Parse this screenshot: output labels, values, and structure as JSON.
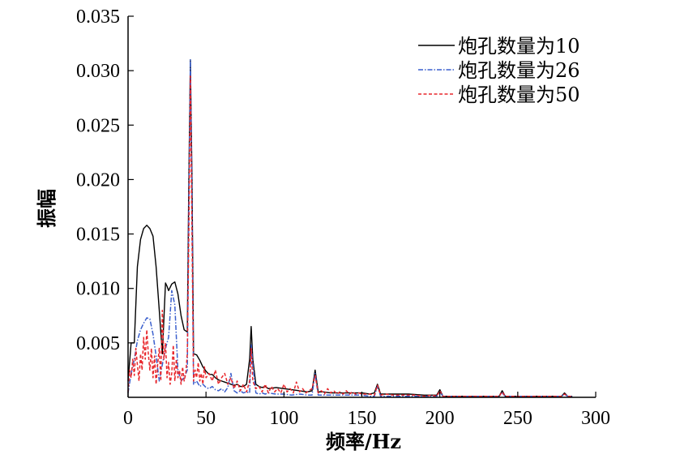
{
  "chart_data": {
    "type": "line",
    "title": "",
    "xlabel": "频率/Hz",
    "ylabel": "振幅",
    "xlim": [
      0,
      300
    ],
    "ylim": [
      0,
      0.035
    ],
    "xticks": [
      0,
      50,
      100,
      150,
      200,
      250,
      300
    ],
    "yticks": [
      0.005,
      0.01,
      0.015,
      0.02,
      0.025,
      0.03,
      0.035
    ],
    "xtick_labels": [
      "0",
      "50",
      "100",
      "150",
      "200",
      "250",
      "300"
    ],
    "ytick_labels": [
      "0.005",
      "0.010",
      "0.015",
      "0.020",
      "0.025",
      "0.030",
      "0.035"
    ],
    "grid": false,
    "legend_position": "top-right",
    "series": [
      {
        "name": "炮孔数量为10",
        "color": "#000000",
        "dash": "solid",
        "x": [
          0,
          2,
          4,
          6,
          8,
          10,
          12,
          14,
          16,
          18,
          20,
          22,
          24,
          25,
          26,
          28,
          30,
          32,
          34,
          36,
          38,
          39,
          40,
          41,
          42,
          44,
          46,
          48,
          50,
          52,
          54,
          56,
          58,
          60,
          62,
          64,
          66,
          68,
          70,
          72,
          74,
          76,
          78,
          79,
          80,
          82,
          84,
          86,
          88,
          90,
          95,
          100,
          105,
          110,
          115,
          118,
          120,
          122,
          125,
          130,
          135,
          140,
          145,
          150,
          155,
          158,
          160,
          162,
          165,
          170,
          180,
          190,
          195,
          198,
          200,
          202,
          205,
          210,
          220,
          230,
          235,
          238,
          240,
          242,
          245,
          250,
          260,
          270,
          275,
          278,
          280,
          282,
          285
        ],
        "values": [
          0.0015,
          0.005,
          0.005,
          0.012,
          0.0145,
          0.0155,
          0.0158,
          0.0155,
          0.0148,
          0.012,
          0.008,
          0.004,
          0.0105,
          0.0102,
          0.0098,
          0.0104,
          0.0106,
          0.0095,
          0.0075,
          0.0062,
          0.006,
          0.02,
          0.031,
          0.02,
          0.004,
          0.0039,
          0.0034,
          0.0028,
          0.0024,
          0.0021,
          0.0021,
          0.0018,
          0.0016,
          0.0015,
          0.0014,
          0.0013,
          0.0012,
          0.0011,
          0.0012,
          0.001,
          0.001,
          0.0012,
          0.0035,
          0.0065,
          0.0035,
          0.0012,
          0.001,
          0.0009,
          0.001,
          0.0008,
          0.0009,
          0.0008,
          0.0007,
          0.0006,
          0.0005,
          0.0006,
          0.0025,
          0.0005,
          0.0005,
          0.0004,
          0.0004,
          0.0004,
          0.0004,
          0.0004,
          0.0003,
          0.0004,
          0.0012,
          0.0003,
          0.0003,
          0.0003,
          0.0003,
          0.0002,
          0.0002,
          0.0002,
          0.0007,
          0.0001,
          0.0001,
          0.0001,
          0.0001,
          0.0001,
          0.0001,
          0.0001,
          0.0006,
          0.0001,
          0.0001,
          0.0001,
          0.0001,
          0.0001,
          0.0001,
          0.0001,
          0.0004,
          0.0001,
          0.0001
        ]
      },
      {
        "name": "炮孔数量为26",
        "color": "#3a5fcd",
        "dash": "dashdot",
        "x": [
          0,
          2,
          4,
          6,
          8,
          10,
          12,
          14,
          16,
          18,
          20,
          22,
          24,
          26,
          28,
          30,
          32,
          34,
          36,
          38,
          39,
          40,
          41,
          42,
          44,
          46,
          48,
          50,
          52,
          54,
          56,
          58,
          60,
          62,
          64,
          66,
          68,
          70,
          72,
          74,
          76,
          78,
          79,
          80,
          82,
          84,
          86,
          88,
          90,
          95,
          100,
          105,
          110,
          115,
          118,
          120,
          122,
          125,
          130,
          135,
          140,
          145,
          150,
          155,
          158,
          160,
          162,
          165,
          170,
          180,
          190,
          198,
          200,
          202,
          210,
          220,
          238,
          240,
          242,
          250,
          260,
          278,
          280,
          282,
          285
        ],
        "values": [
          0.0004,
          0.0022,
          0.0035,
          0.0052,
          0.0062,
          0.0068,
          0.0073,
          0.0072,
          0.0058,
          0.0038,
          0.0015,
          0.003,
          0.0045,
          0.0055,
          0.0098,
          0.0085,
          0.0025,
          0.0015,
          0.0018,
          0.0025,
          0.018,
          0.031,
          0.018,
          0.0012,
          0.0015,
          0.001,
          0.0012,
          0.0009,
          0.0008,
          0.001,
          0.0007,
          0.0006,
          0.0008,
          0.0005,
          0.0009,
          0.0022,
          0.0006,
          0.0004,
          0.0006,
          0.0004,
          0.0005,
          0.0004,
          0.0048,
          0.003,
          0.0004,
          0.0003,
          0.0004,
          0.0003,
          0.0004,
          0.0003,
          0.0003,
          0.0002,
          0.0003,
          0.0002,
          0.0002,
          0.0022,
          0.0002,
          0.0002,
          0.0002,
          0.0002,
          0.0002,
          0.0002,
          0.0002,
          0.0001,
          0.0001,
          0.001,
          0.0001,
          0.0001,
          0.0001,
          0.0001,
          0.0001,
          0.0001,
          0.0005,
          0.0001,
          0.0001,
          0.0001,
          0.0001,
          0.0004,
          0.0001,
          0.0001,
          0.0001,
          0.0001,
          0.0003,
          0.0001,
          0.0001
        ]
      },
      {
        "name": "炮孔数量为50",
        "color": "#e8262b",
        "dash": "dashed",
        "x": [
          0,
          1,
          2,
          3,
          4,
          5,
          6,
          7,
          8,
          9,
          10,
          11,
          12,
          13,
          14,
          15,
          16,
          17,
          18,
          19,
          20,
          21,
          22,
          23,
          24,
          25,
          26,
          27,
          28,
          29,
          30,
          31,
          32,
          33,
          34,
          35,
          36,
          37,
          38,
          39,
          40,
          41,
          42,
          43,
          44,
          45,
          46,
          47,
          48,
          49,
          50,
          52,
          54,
          56,
          58,
          60,
          62,
          64,
          66,
          68,
          70,
          72,
          74,
          76,
          78,
          79,
          80,
          82,
          84,
          86,
          88,
          90,
          92,
          94,
          96,
          98,
          100,
          102,
          104,
          106,
          108,
          110,
          112,
          114,
          116,
          118,
          120,
          122,
          124,
          126,
          128,
          130,
          132,
          134,
          136,
          138,
          140,
          142,
          144,
          146,
          148,
          150,
          155,
          158,
          160,
          162,
          165,
          170,
          175,
          180,
          185,
          190,
          195,
          198,
          200,
          202,
          205,
          210,
          220,
          230,
          238,
          240,
          242,
          250,
          260,
          270,
          278,
          280,
          282,
          285
        ],
        "values": [
          0.0005,
          0.0025,
          0.0018,
          0.0035,
          0.002,
          0.0045,
          0.003,
          0.0015,
          0.004,
          0.0025,
          0.0055,
          0.0035,
          0.0062,
          0.004,
          0.0025,
          0.0045,
          0.0018,
          0.0038,
          0.0012,
          0.003,
          0.0045,
          0.0015,
          0.008,
          0.0035,
          0.005,
          0.0018,
          0.0032,
          0.0012,
          0.0022,
          0.0048,
          0.0015,
          0.0035,
          0.0018,
          0.0025,
          0.0012,
          0.0028,
          0.0015,
          0.0022,
          0.004,
          0.015,
          0.0295,
          0.015,
          0.0015,
          0.0025,
          0.0018,
          0.0032,
          0.0015,
          0.0022,
          0.0012,
          0.0028,
          0.0018,
          0.0022,
          0.0015,
          0.0025,
          0.0012,
          0.0018,
          0.0022,
          0.0012,
          0.0018,
          0.0008,
          0.0015,
          0.0006,
          0.0012,
          0.0005,
          0.0015,
          0.0045,
          0.0015,
          0.0008,
          0.001,
          0.0005,
          0.0012,
          0.0004,
          0.001,
          0.0005,
          0.0008,
          0.0004,
          0.0012,
          0.0005,
          0.0008,
          0.0004,
          0.0014,
          0.0005,
          0.0008,
          0.0004,
          0.0006,
          0.0008,
          0.002,
          0.0004,
          0.0006,
          0.0003,
          0.0008,
          0.0004,
          0.0006,
          0.0003,
          0.0005,
          0.0003,
          0.0006,
          0.0003,
          0.0005,
          0.0003,
          0.0004,
          0.0003,
          0.0003,
          0.0002,
          0.0011,
          0.0002,
          0.0003,
          0.0002,
          0.0002,
          0.0002,
          0.0002,
          0.0001,
          0.0002,
          0.0001,
          0.0006,
          0.0001,
          0.0001,
          0.0001,
          0.0001,
          0.0001,
          0.0001,
          0.0005,
          0.0001,
          0.0001,
          0.0001,
          0.0001,
          0.0001,
          0.0003,
          0.0001,
          0.0001
        ]
      }
    ]
  }
}
